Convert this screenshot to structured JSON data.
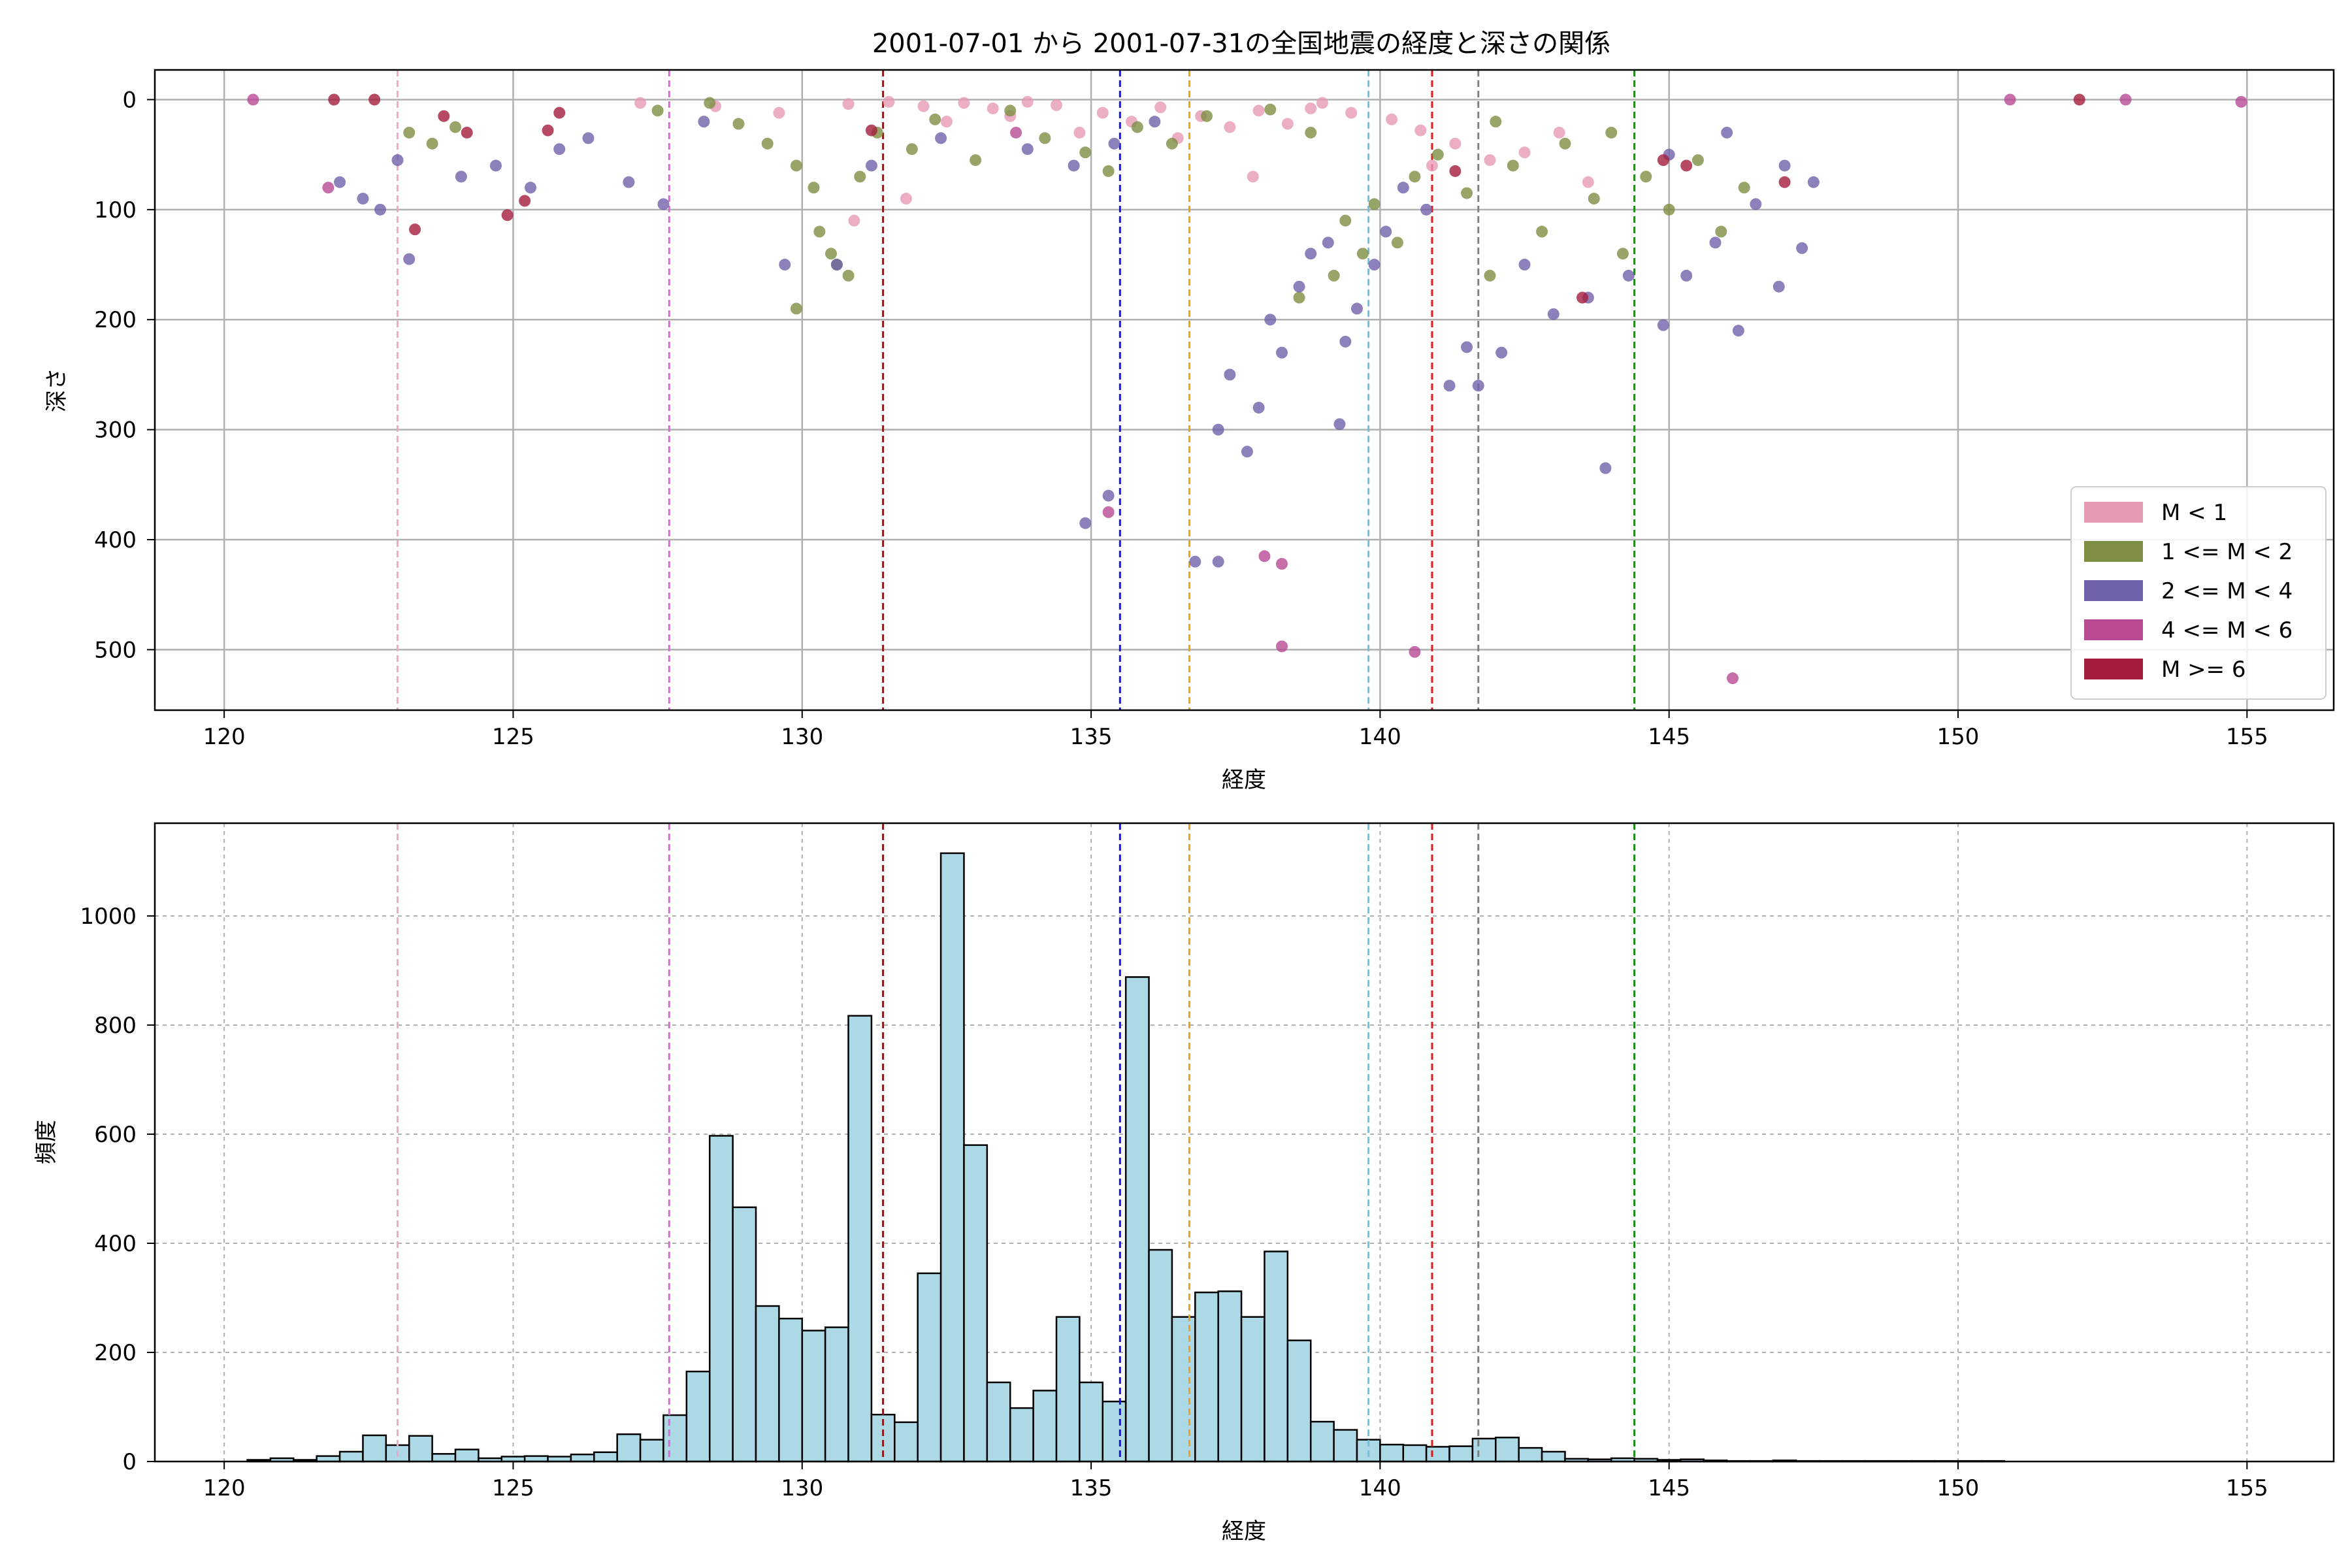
{
  "figure": {
    "title": "2001-07-01 から 2001-07-31の全国地震の経度と深さの関係"
  },
  "chart_data": [
    {
      "type": "scatter",
      "title": "2001-07-01 から 2001-07-31の全国地震の経度と深さの関係",
      "xlabel": "経度",
      "ylabel": "深さ",
      "xlim": [
        118.8,
        156.5
      ],
      "ylim": [
        555,
        -27
      ],
      "y_inverted": true,
      "xticks": [
        "120",
        "125",
        "130",
        "135",
        "140",
        "145",
        "150",
        "155"
      ],
      "yticks": [
        "0",
        "100",
        "200",
        "300",
        "400",
        "500"
      ],
      "grid": true,
      "legend": {
        "position": "lower-right",
        "entries": [
          {
            "label": "M < 1",
            "color": "#E79AB5"
          },
          {
            "label": "1 <= M < 2",
            "color": "#7E8F44"
          },
          {
            "label": "2 <= M < 4",
            "color": "#7160AA"
          },
          {
            "label": "4 <= M < 6",
            "color": "#B84A94"
          },
          {
            "label": "M >= 6",
            "color": "#A21D3B"
          }
        ]
      },
      "reference_lines": [
        {
          "x": 123.0,
          "color": "#F4A6C8"
        },
        {
          "x": 127.7,
          "color": "#E066E0"
        },
        {
          "x": 131.4,
          "color": "#8B1A1A"
        },
        {
          "x": 135.5,
          "color": "#1414E6"
        },
        {
          "x": 136.7,
          "color": "#F0A020"
        },
        {
          "x": 139.8,
          "color": "#6EC3DC"
        },
        {
          "x": 140.9,
          "color": "#E01818"
        },
        {
          "x": 141.7,
          "color": "#808080"
        },
        {
          "x": 144.4,
          "color": "#1A8C1A"
        }
      ],
      "series": [
        {
          "name": "M < 1",
          "color": "#E79AB5",
          "points": [
            [
              130.8,
              4
            ],
            [
              131.5,
              2
            ],
            [
              132.1,
              6
            ],
            [
              132.8,
              3
            ],
            [
              133.3,
              8
            ],
            [
              133.9,
              2
            ],
            [
              134.4,
              5
            ],
            [
              135.2,
              12
            ],
            [
              135.7,
              20
            ],
            [
              136.2,
              7
            ],
            [
              136.9,
              15
            ],
            [
              137.4,
              25
            ],
            [
              137.9,
              10
            ],
            [
              138.4,
              22
            ],
            [
              139.0,
              3
            ],
            [
              139.5,
              12
            ],
            [
              140.2,
              18
            ],
            [
              140.7,
              28
            ],
            [
              141.3,
              40
            ],
            [
              141.9,
              55
            ],
            [
              142.5,
              48
            ],
            [
              143.1,
              30
            ],
            [
              137.8,
              70
            ],
            [
              131.8,
              90
            ],
            [
              130.9,
              110
            ],
            [
              134.8,
              30
            ],
            [
              136.5,
              35
            ],
            [
              132.5,
              20
            ],
            [
              133.6,
              15
            ],
            [
              138.8,
              8
            ],
            [
              140.9,
              60
            ],
            [
              143.6,
              75
            ],
            [
              128.5,
              6
            ],
            [
              127.2,
              3
            ],
            [
              129.6,
              12
            ]
          ]
        },
        {
          "name": "1 <= M < 2",
          "color": "#7E8F44",
          "points": [
            [
              123.2,
              30
            ],
            [
              123.6,
              40
            ],
            [
              124.0,
              25
            ],
            [
              127.5,
              10
            ],
            [
              128.4,
              3
            ],
            [
              128.9,
              22
            ],
            [
              129.4,
              40
            ],
            [
              129.9,
              60
            ],
            [
              130.2,
              80
            ],
            [
              130.5,
              140
            ],
            [
              130.6,
              150
            ],
            [
              130.8,
              160
            ],
            [
              130.3,
              120
            ],
            [
              129.9,
              190
            ],
            [
              131.0,
              70
            ],
            [
              131.3,
              30
            ],
            [
              131.9,
              45
            ],
            [
              132.3,
              18
            ],
            [
              133.0,
              55
            ],
            [
              133.6,
              10
            ],
            [
              134.2,
              35
            ],
            [
              134.9,
              48
            ],
            [
              135.3,
              65
            ],
            [
              135.8,
              25
            ],
            [
              136.4,
              40
            ],
            [
              137.0,
              15
            ],
            [
              138.1,
              9
            ],
            [
              138.8,
              30
            ],
            [
              139.4,
              110
            ],
            [
              139.7,
              140
            ],
            [
              139.2,
              160
            ],
            [
              138.6,
              180
            ],
            [
              139.9,
              95
            ],
            [
              140.3,
              130
            ],
            [
              140.6,
              70
            ],
            [
              141.0,
              50
            ],
            [
              141.5,
              85
            ],
            [
              141.9,
              160
            ],
            [
              142.3,
              60
            ],
            [
              142.8,
              120
            ],
            [
              143.2,
              40
            ],
            [
              143.7,
              90
            ],
            [
              144.2,
              140
            ],
            [
              144.6,
              70
            ],
            [
              145.0,
              100
            ],
            [
              145.5,
              55
            ],
            [
              145.9,
              120
            ],
            [
              146.3,
              80
            ],
            [
              144.0,
              30
            ],
            [
              142.0,
              20
            ]
          ]
        },
        {
          "name": "2 <= M < 4",
          "color": "#7160AA",
          "points": [
            [
              122.0,
              75
            ],
            [
              122.4,
              90
            ],
            [
              122.7,
              100
            ],
            [
              123.0,
              55
            ],
            [
              123.2,
              145
            ],
            [
              124.1,
              70
            ],
            [
              124.7,
              60
            ],
            [
              125.3,
              80
            ],
            [
              125.8,
              45
            ],
            [
              126.3,
              35
            ],
            [
              127.0,
              75
            ],
            [
              127.6,
              95
            ],
            [
              128.3,
              20
            ],
            [
              129.7,
              150
            ],
            [
              130.6,
              150
            ],
            [
              131.2,
              60
            ],
            [
              132.4,
              35
            ],
            [
              133.9,
              45
            ],
            [
              134.9,
              385
            ],
            [
              135.3,
              360
            ],
            [
              134.7,
              60
            ],
            [
              135.4,
              40
            ],
            [
              136.1,
              20
            ],
            [
              136.8,
              420
            ],
            [
              137.2,
              420
            ],
            [
              137.2,
              300
            ],
            [
              137.4,
              250
            ],
            [
              137.7,
              320
            ],
            [
              137.9,
              280
            ],
            [
              138.1,
              200
            ],
            [
              138.3,
              230
            ],
            [
              138.6,
              170
            ],
            [
              138.8,
              140
            ],
            [
              139.1,
              130
            ],
            [
              139.3,
              295
            ],
            [
              139.4,
              220
            ],
            [
              139.6,
              190
            ],
            [
              139.9,
              150
            ],
            [
              140.1,
              120
            ],
            [
              140.4,
              80
            ],
            [
              140.8,
              100
            ],
            [
              141.2,
              260
            ],
            [
              141.5,
              225
            ],
            [
              141.7,
              260
            ],
            [
              142.1,
              230
            ],
            [
              142.5,
              150
            ],
            [
              143.0,
              195
            ],
            [
              143.6,
              180
            ],
            [
              143.9,
              335
            ],
            [
              144.3,
              160
            ],
            [
              144.9,
              205
            ],
            [
              145.3,
              160
            ],
            [
              145.8,
              130
            ],
            [
              146.2,
              210
            ],
            [
              146.5,
              95
            ],
            [
              146.9,
              170
            ],
            [
              147.3,
              135
            ],
            [
              147.0,
              60
            ],
            [
              147.5,
              75
            ],
            [
              145.0,
              50
            ],
            [
              146.0,
              30
            ]
          ]
        },
        {
          "name": "4 <= M < 6",
          "color": "#B84A94",
          "points": [
            [
              120.5,
              0
            ],
            [
              121.8,
              80
            ],
            [
              135.3,
              375
            ],
            [
              138.0,
              415
            ],
            [
              138.3,
              422
            ],
            [
              138.3,
              497
            ],
            [
              140.6,
              502
            ],
            [
              146.1,
              526
            ],
            [
              154.9,
              2
            ],
            [
              150.9,
              0
            ],
            [
              152.9,
              0
            ],
            [
              133.7,
              30
            ]
          ]
        },
        {
          "name": "M >= 6",
          "color": "#A21D3B",
          "points": [
            [
              123.3,
              118
            ],
            [
              124.9,
              105
            ],
            [
              125.2,
              92
            ],
            [
              125.6,
              28
            ],
            [
              125.8,
              12
            ],
            [
              123.8,
              15
            ],
            [
              124.2,
              30
            ],
            [
              131.2,
              28
            ],
            [
              141.3,
              65
            ],
            [
              143.5,
              180
            ],
            [
              144.9,
              55
            ],
            [
              145.3,
              60
            ],
            [
              147.0,
              75
            ],
            [
              152.1,
              0
            ],
            [
              121.9,
              0
            ],
            [
              122.6,
              0
            ]
          ]
        }
      ]
    },
    {
      "type": "bar",
      "subtype": "histogram",
      "title": "",
      "xlabel": "経度",
      "ylabel": "頻度",
      "xlim": [
        118.8,
        156.5
      ],
      "ylim": [
        0,
        1170
      ],
      "xticks": [
        "120",
        "125",
        "130",
        "135",
        "140",
        "145",
        "150",
        "155"
      ],
      "yticks": [
        "0",
        "200",
        "400",
        "600",
        "800",
        "1000"
      ],
      "grid": "dashed",
      "bin_start": 120.4,
      "bin_width": 0.4,
      "bar_color": "#ADD8E6",
      "edge_color": "#000000",
      "values": [
        3,
        6,
        3,
        10,
        18,
        48,
        30,
        47,
        14,
        22,
        6,
        9,
        10,
        9,
        13,
        17,
        50,
        40,
        85,
        165,
        597,
        466,
        285,
        262,
        240,
        246,
        817,
        86,
        72,
        345,
        1115,
        580,
        145,
        98,
        130,
        265,
        145,
        110,
        888,
        388,
        265,
        310,
        312,
        265,
        385,
        222,
        73,
        58,
        40,
        31,
        30,
        27,
        28,
        42,
        44,
        25,
        18,
        5,
        4,
        6,
        5,
        3,
        4,
        2,
        1,
        1,
        2,
        1,
        1,
        1,
        1,
        1,
        1,
        1,
        1,
        1
      ]
    }
  ]
}
